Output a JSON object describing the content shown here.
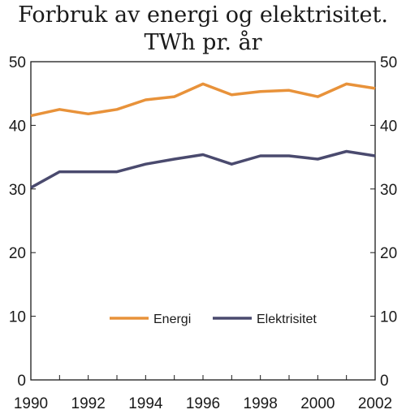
{
  "chart_data": {
    "type": "line",
    "title_line1": "Forbruk av energi og elektrisitet.",
    "title_line2": "TWh pr. år",
    "x": [
      1990,
      1991,
      1992,
      1993,
      1994,
      1995,
      1996,
      1997,
      1998,
      1999,
      2000,
      2001,
      2002
    ],
    "xticks": [
      1990,
      1992,
      1994,
      1996,
      1998,
      2000,
      2002
    ],
    "yticks": [
      0,
      10,
      20,
      30,
      40,
      50
    ],
    "ylim": [
      0,
      50
    ],
    "grid": false,
    "legend_position": "bottom-center",
    "series": [
      {
        "name": "Energi",
        "color": "#e8923a",
        "values": [
          41.5,
          42.5,
          41.8,
          42.5,
          44.0,
          44.5,
          46.5,
          44.8,
          45.3,
          45.5,
          44.5,
          46.5,
          45.8
        ]
      },
      {
        "name": "Elektrisitet",
        "color": "#4a4a6e",
        "values": [
          30.2,
          32.7,
          32.7,
          32.7,
          33.9,
          34.7,
          35.4,
          33.9,
          35.2,
          35.2,
          34.7,
          35.9,
          35.2
        ]
      }
    ]
  }
}
